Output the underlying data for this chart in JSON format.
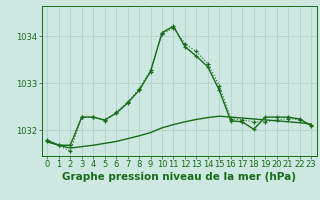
{
  "background_color": "#cce8e0",
  "grid_color": "#b8d4cc",
  "line_color": "#1a6b1a",
  "title": "Graphe pression niveau de la mer (hPa)",
  "ylim": [
    1031.45,
    1034.65
  ],
  "xlim": [
    -0.5,
    23.5
  ],
  "yticks": [
    1032,
    1033,
    1034
  ],
  "xticks": [
    0,
    1,
    2,
    3,
    4,
    5,
    6,
    7,
    8,
    9,
    10,
    11,
    12,
    13,
    14,
    15,
    16,
    17,
    18,
    19,
    20,
    21,
    22,
    23
  ],
  "series1_x": [
    0,
    1,
    2,
    3,
    4,
    5,
    6,
    7,
    8,
    9,
    10,
    11,
    12,
    13,
    14,
    15,
    16,
    17,
    18,
    19,
    20,
    21,
    22,
    23
  ],
  "series1_y": [
    1031.75,
    1031.68,
    1031.62,
    1031.65,
    1031.68,
    1031.72,
    1031.76,
    1031.82,
    1031.88,
    1031.95,
    1032.05,
    1032.12,
    1032.18,
    1032.23,
    1032.27,
    1032.3,
    1032.28,
    1032.26,
    1032.24,
    1032.22,
    1032.2,
    1032.18,
    1032.16,
    1032.13
  ],
  "series2_x": [
    0,
    1,
    2,
    3,
    4,
    5,
    6,
    7,
    8,
    9,
    10,
    11,
    12,
    13,
    14,
    15,
    16,
    17,
    18,
    19,
    20,
    21,
    22,
    23
  ],
  "series2_y": [
    1031.8,
    1031.68,
    1031.55,
    1032.28,
    1032.28,
    1032.2,
    1032.38,
    1032.6,
    1032.88,
    1033.28,
    1034.05,
    1034.18,
    1033.85,
    1033.68,
    1033.42,
    1032.95,
    1032.25,
    1032.22,
    1032.18,
    1032.18,
    1032.22,
    1032.25,
    1032.22,
    1032.12
  ],
  "series3_x": [
    0,
    1,
    2,
    3,
    4,
    5,
    6,
    7,
    8,
    9,
    10,
    11,
    12,
    13,
    14,
    15,
    16,
    17,
    18,
    19,
    20,
    21,
    22,
    23
  ],
  "series3_y": [
    1031.78,
    1031.68,
    1031.68,
    1032.28,
    1032.28,
    1032.22,
    1032.36,
    1032.58,
    1032.85,
    1033.25,
    1034.08,
    1034.22,
    1033.78,
    1033.58,
    1033.35,
    1032.85,
    1032.2,
    1032.18,
    1032.02,
    1032.28,
    1032.28,
    1032.28,
    1032.24,
    1032.1
  ],
  "title_fontsize": 7.5,
  "tick_fontsize": 6.0
}
